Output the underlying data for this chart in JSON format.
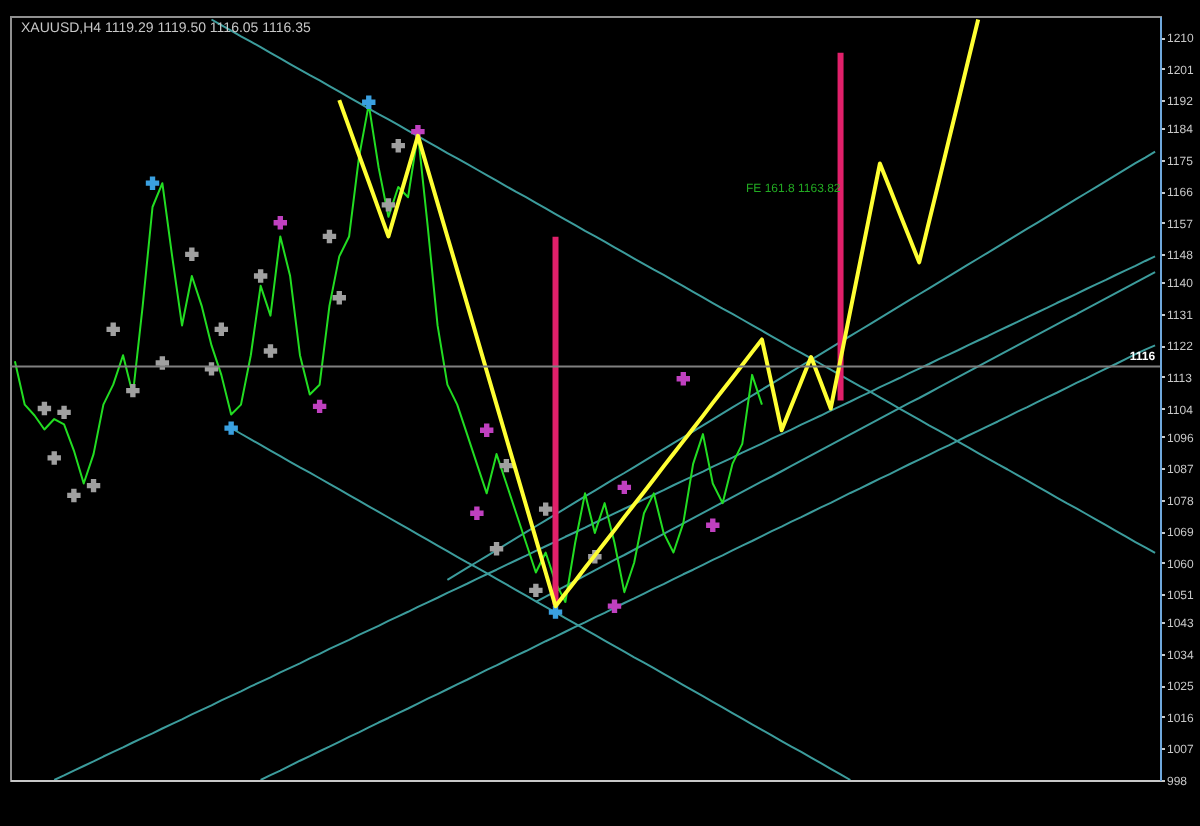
{
  "chart_data": {
    "type": "line",
    "title": "XAUUSD,H4 1119.29 1119.50 1116.05 1116.35",
    "tick_labels": "y",
    "annotations": [
      "FE 161.8 1163.82"
    ],
    "categories": [
      null,
      null,
      null,
      null,
      null,
      null,
      null,
      null,
      null,
      null,
      null,
      null,
      null,
      null,
      null,
      null,
      null,
      null,
      null,
      null,
      null,
      null,
      null,
      null,
      null,
      null,
      null,
      null,
      null,
      null,
      null,
      null,
      null,
      null,
      null,
      null,
      null,
      null,
      null,
      null,
      null,
      null,
      null,
      null,
      null,
      null,
      null,
      null,
      null,
      null,
      null,
      null,
      null,
      null,
      null,
      null,
      null,
      null,
      null,
      null,
      null,
      null,
      null,
      null,
      null,
      null,
      null,
      null,
      null,
      null,
      null,
      null,
      null,
      null,
      null,
      null,
      null,
      null,
      null,
      null,
      null,
      null,
      null,
      null,
      null,
      null,
      null,
      null,
      null,
      null,
      null,
      null,
      null,
      null,
      null,
      null,
      null,
      null,
      null,
      null,
      null,
      null,
      null,
      null,
      null,
      null,
      null,
      null,
      null,
      null,
      null,
      null,
      null,
      null,
      null,
      null,
      null
    ],
    "ylim": [
      998,
      1216
    ],
    "yticks": [
      998,
      1007,
      1016,
      1025,
      1034,
      1043,
      1051,
      1060,
      1069,
      1078,
      1087,
      1096,
      1104,
      1113,
      1122,
      1131,
      1140,
      1148,
      1157,
      1166,
      1175,
      1184,
      1192,
      1201,
      1210
    ],
    "ref_lines": [
      {
        "axis": "y",
        "value": 1116,
        "label": "1116",
        "color": "#808080"
      }
    ],
    "series": [
      {
        "type": "line",
        "color": "#3c9c9c",
        "values": [
          null,
          null,
          null,
          null,
          null,
          null,
          null,
          null,
          null,
          null,
          null,
          null,
          null,
          null,
          null,
          null,
          null,
          null,
          null,
          null,
          1215.0,
          1213.4,
          1211.8,
          1210.2,
          1208.7,
          1207.1,
          1205.5,
          1203.9,
          1202.3,
          1200.7,
          1199.1,
          1197.6,
          1196.0,
          1194.4,
          1192.8,
          1191.2,
          1189.6,
          1188.0,
          1186.5,
          1184.9,
          1183.3,
          1181.7,
          1180.1,
          1178.5,
          1176.9,
          1175.4,
          1173.8,
          1172.2,
          1170.6,
          1169.0,
          1167.4,
          1165.8,
          1164.3,
          1162.7,
          1161.1,
          1159.5,
          1157.9,
          1156.3,
          1154.7,
          1153.2,
          1151.6,
          1150.0,
          1148.4,
          1146.8,
          1145.2,
          1143.6,
          1142.1,
          1140.5,
          1138.9,
          1137.3,
          1135.7,
          1134.1,
          1132.5,
          1131.0,
          1129.4,
          1127.8,
          1126.2,
          1124.6,
          1123.0,
          1121.4,
          1119.9,
          1118.3,
          1116.7,
          1115.1,
          1113.5,
          1111.9,
          1110.3,
          1108.8,
          1107.2,
          1105.6,
          1104.0,
          1102.4,
          1100.8,
          1099.2,
          1097.7,
          1096.1,
          1094.5,
          1092.9,
          1091.3,
          1089.7,
          1088.1,
          1086.6,
          1085.0,
          1083.4,
          1081.8,
          1080.2,
          1078.6,
          1077.0,
          1075.5,
          1073.9,
          1072.3,
          1070.7,
          1069.1,
          1067.5,
          1065.9,
          1064.4,
          1062.8
        ]
      },
      {
        "type": "line",
        "color": "#3c9c9c",
        "values": [
          null,
          null,
          null,
          null,
          null,
          null,
          null,
          null,
          null,
          null,
          null,
          null,
          null,
          null,
          null,
          null,
          null,
          null,
          null,
          null,
          null,
          null,
          1098.4,
          1096.8,
          1095.2,
          1093.6,
          1092.0,
          1090.4,
          1088.8,
          1087.2,
          1085.7,
          1084.1,
          1082.5,
          1080.9,
          1079.3,
          1077.7,
          1076.1,
          1074.5,
          1072.9,
          1071.3,
          1069.7,
          1068.1,
          1066.5,
          1064.9,
          1063.3,
          1061.7,
          1060.1,
          1058.6,
          1057.0,
          1055.4,
          1053.8,
          1052.2,
          1050.6,
          1049.0,
          1047.4,
          1045.8,
          1044.2,
          1042.6,
          1041.0,
          1039.4,
          1037.8,
          1036.2,
          1034.6,
          1033.0,
          1031.5,
          1029.9,
          1028.3,
          1026.7,
          1025.1,
          1023.5,
          1021.9,
          1020.3,
          1018.7,
          1017.1,
          1015.5,
          1013.9,
          1012.3,
          1010.7,
          1009.1,
          1007.5,
          1006.0,
          1004.4,
          1002.8,
          1001.2,
          999.6,
          998.0,
          null,
          null,
          null,
          null,
          null,
          null,
          null,
          null,
          null,
          null,
          null,
          null,
          null,
          null,
          null,
          null,
          null,
          null,
          null,
          null,
          null,
          null,
          null,
          null,
          null,
          null,
          null,
          null,
          null,
          null,
          null
        ]
      },
      {
        "type": "line",
        "color": "#3c9c9c",
        "values": [
          null,
          null,
          null,
          null,
          null,
          null,
          null,
          null,
          null,
          null,
          null,
          null,
          null,
          null,
          null,
          null,
          null,
          null,
          null,
          null,
          null,
          null,
          null,
          null,
          null,
          null,
          null,
          null,
          null,
          null,
          null,
          null,
          null,
          null,
          null,
          null,
          null,
          null,
          null,
          null,
          null,
          null,
          null,
          null,
          1055.1,
          1056.8,
          1058.5,
          1060.2,
          1061.9,
          1063.6,
          1065.3,
          1067.0,
          1068.7,
          1070.4,
          1072.1,
          1073.8,
          1075.5,
          1077.2,
          1078.9,
          1080.6,
          1082.3,
          1084.0,
          1085.6,
          1087.3,
          1089.0,
          1090.7,
          1092.4,
          1094.1,
          1095.8,
          1097.5,
          1099.2,
          1100.9,
          1102.6,
          1104.3,
          1106.0,
          1107.7,
          1109.4,
          1111.1,
          1112.8,
          1114.5,
          1116.2,
          1117.9,
          1119.6,
          1121.3,
          1123.0,
          1124.7,
          1126.4,
          1128.1,
          1129.8,
          1131.5,
          1133.2,
          1134.9,
          1136.6,
          1138.3,
          1140.0,
          1141.7,
          1143.4,
          1145.1,
          1146.8,
          1148.5,
          1150.2,
          1151.9,
          1153.6,
          1155.3,
          1157.0,
          1158.7,
          1160.4,
          1162.1,
          1163.8,
          1165.5,
          1167.2,
          1168.9,
          1170.6,
          1172.3,
          1174.0,
          1175.6,
          1177.3
        ]
      },
      {
        "type": "line",
        "color": "#3c9c9c",
        "values": [
          null,
          null,
          null,
          null,
          998.0,
          999.3,
          1000.7,
          1002.0,
          1003.3,
          1004.7,
          1006.0,
          1007.3,
          1008.7,
          1010.0,
          1011.3,
          1012.7,
          1014.0,
          1015.3,
          1016.7,
          1018.0,
          1019.3,
          1020.7,
          1022.0,
          1023.3,
          1024.7,
          1026.0,
          1027.3,
          1028.7,
          1030.0,
          1031.3,
          1032.7,
          1034.0,
          1035.4,
          1036.7,
          1038.0,
          1039.4,
          1040.7,
          1042.0,
          1043.4,
          1044.7,
          1046.0,
          1047.4,
          1048.7,
          1050.0,
          1051.4,
          1052.7,
          1054.0,
          1055.4,
          1056.7,
          1058.0,
          1059.4,
          1060.7,
          1062.0,
          1063.4,
          1064.7,
          1066.0,
          1067.4,
          1068.7,
          1070.0,
          1071.4,
          1072.7,
          1074.1,
          1075.4,
          1076.7,
          1078.1,
          1079.4,
          1080.7,
          1082.1,
          1083.4,
          1084.7,
          1086.0,
          1087.4,
          1088.7,
          1090.0,
          1091.4,
          1092.7,
          1094.0,
          1095.4,
          1096.7,
          1098.0,
          1099.4,
          1100.7,
          1102.0,
          1103.4,
          1104.7,
          1106.0,
          1107.4,
          1108.7,
          1110.1,
          1111.4,
          1112.7,
          1114.1,
          1115.4,
          1116.7,
          1118.1,
          1119.4,
          1120.7,
          1122.1,
          1123.4,
          1124.7,
          1126.1,
          1127.4,
          1128.7,
          1130.1,
          1131.4,
          1132.7,
          1134.1,
          1135.4,
          1136.7,
          1138.1,
          1139.4,
          1140.7,
          1142.1,
          1143.4,
          1144.7,
          1146.1,
          1147.4
        ]
      },
      {
        "type": "line",
        "color": "#3c9c9c",
        "values": [
          null,
          null,
          null,
          null,
          null,
          null,
          null,
          null,
          null,
          null,
          null,
          null,
          null,
          null,
          null,
          null,
          null,
          null,
          null,
          null,
          null,
          null,
          null,
          null,
          null,
          998.0,
          999.4,
          1000.7,
          1002.1,
          1003.5,
          1004.8,
          1006.2,
          1007.5,
          1008.9,
          1010.3,
          1011.6,
          1013.0,
          1014.4,
          1015.7,
          1017.1,
          1018.4,
          1019.8,
          1021.2,
          1022.5,
          1023.9,
          1025.3,
          1026.6,
          1028.0,
          1029.4,
          1030.7,
          1032.1,
          1033.5,
          1034.8,
          1036.2,
          1037.6,
          1038.9,
          1040.3,
          1041.7,
          1043.0,
          1044.4,
          1045.7,
          1047.1,
          1048.5,
          1049.8,
          1051.2,
          1052.6,
          1053.9,
          1055.3,
          1056.7,
          1058.0,
          1059.4,
          1060.8,
          1062.1,
          1063.5,
          1064.9,
          1066.2,
          1067.6,
          1069.0,
          1070.3,
          1071.7,
          1073.0,
          1074.4,
          1075.8,
          1077.1,
          1078.5,
          1079.9,
          1081.2,
          1082.6,
          1084.0,
          1085.3,
          1086.7,
          1088.1,
          1089.4,
          1090.8,
          1092.2,
          1093.5,
          1094.9,
          1096.3,
          1097.6,
          1099.0,
          1100.3,
          1101.7,
          1103.1,
          1104.4,
          1105.8,
          1107.2,
          1108.5,
          1109.9,
          1111.3,
          1112.6,
          1114.0,
          1115.4,
          1116.7,
          1118.1,
          1119.5,
          1120.8,
          1122.0
        ]
      },
      {
        "type": "line",
        "color": "#3c9c9c",
        "values": [
          null,
          null,
          null,
          null,
          null,
          null,
          null,
          null,
          null,
          null,
          null,
          null,
          null,
          null,
          null,
          null,
          null,
          null,
          null,
          null,
          null,
          null,
          null,
          null,
          null,
          null,
          null,
          null,
          null,
          null,
          null,
          null,
          null,
          null,
          null,
          null,
          null,
          null,
          null,
          null,
          null,
          null,
          null,
          null,
          null,
          null,
          null,
          null,
          null,
          null,
          null,
          null,
          null,
          1048.8,
          1050.3,
          1051.8,
          1053.3,
          1054.8,
          1056.3,
          1057.8,
          1059.3,
          1060.8,
          1062.2,
          1063.7,
          1065.2,
          1066.7,
          1068.2,
          1069.7,
          1071.2,
          1072.7,
          1074.2,
          1075.7,
          1077.2,
          1078.7,
          1080.2,
          1081.7,
          1083.2,
          1084.6,
          1086.1,
          1087.6,
          1089.1,
          1090.6,
          1092.1,
          1093.6,
          1095.1,
          1096.6,
          1098.1,
          1099.6,
          1101.1,
          1102.6,
          1104.1,
          1105.6,
          1107.0,
          1108.5,
          1110.0,
          1111.5,
          1113.0,
          1114.5,
          1116.0,
          1117.5,
          1119.0,
          1120.5,
          1122.0,
          1123.5,
          1125.0,
          1126.5,
          1128.0,
          1129.5,
          1130.9,
          1132.4,
          1133.9,
          1135.4,
          1136.9,
          1138.4,
          1139.9,
          1141.4,
          1142.9
        ]
      },
      {
        "color": "#22dd22",
        "values": [
          1117.5,
          1105.1,
          1102,
          1098,
          1101,
          1099.5,
          1092,
          1082.6,
          1091.0,
          1105.1,
          1110.8,
          1119.2,
          1108.0,
          1133.3,
          1161.5,
          1168.3,
          1147.4,
          1127.7,
          1141.8,
          1133.3,
          1122.0,
          1113.6,
          1102.3,
          1105.1,
          1119.2,
          1139.0,
          1130.5,
          1153.1,
          1141.8,
          1119.2,
          1108.0,
          1110.8,
          1133.3,
          1147.4,
          1153.1,
          1175.6,
          1190.8,
          1172.8,
          1158.7,
          1167.2,
          1164.3,
          1182.4,
          1155.9,
          1127.7,
          1110.8,
          1105.1,
          1096.7,
          1088.2,
          1079.8,
          1091.0,
          1082.6,
          1074.1,
          1065.7,
          1057.2,
          1062.9,
          1054.4,
          1048.8,
          1065.7,
          1079.8,
          1068.5,
          1077.0,
          1065.7,
          1051.6,
          1060.0,
          1074.1,
          1079.8,
          1068.5,
          1062.9,
          1071.3,
          1088.2,
          1096.7,
          1082.6,
          1077.0,
          1088.2,
          1093.9,
          1113.6,
          1105.1,
          null,
          null,
          null,
          null,
          null,
          null,
          null,
          null,
          null,
          null,
          null,
          null,
          null,
          null,
          null,
          null,
          null,
          null,
          null,
          null,
          null,
          null,
          null,
          null,
          null,
          null,
          null,
          null,
          null,
          null,
          null,
          null,
          null,
          null,
          null,
          null,
          null,
          null,
          null,
          null
        ]
      },
      {
        "type": "scatter",
        "marker": "cross",
        "color": "#a0a0a0",
        "values": [
          null,
          null,
          null,
          1104,
          1089.9,
          1102.9,
          1079.2,
          null,
          1082,
          null,
          1126.6,
          null,
          1109.1,
          null,
          null,
          1117,
          null,
          null,
          1148,
          null,
          1115.3,
          1126.6,
          null,
          null,
          null,
          1141.8,
          1120.4,
          null,
          null,
          null,
          null,
          null,
          1153.1,
          1135.6,
          null,
          null,
          null,
          null,
          1162.1,
          1179,
          null,
          null,
          null,
          null,
          null,
          null,
          null,
          null,
          null,
          1064,
          1087.7,
          null,
          null,
          1052.1,
          1075.3,
          null,
          null,
          null,
          null,
          1061.7,
          null,
          null,
          null,
          null,
          null,
          null,
          null,
          null,
          null,
          null,
          null,
          null,
          null,
          null,
          null,
          null,
          null,
          null,
          null,
          null,
          null,
          null,
          null,
          null,
          null,
          null,
          null,
          null,
          null,
          null,
          null,
          null,
          null,
          null,
          null,
          null,
          null,
          null,
          null,
          null,
          null,
          null,
          null,
          null,
          null,
          null,
          null,
          null,
          null,
          null,
          null,
          null,
          null,
          null,
          null,
          null,
          null
        ]
      },
      {
        "type": "scatter",
        "marker": "cross",
        "color": "#c040c0",
        "values": [
          null,
          null,
          null,
          null,
          null,
          null,
          null,
          null,
          null,
          null,
          null,
          null,
          null,
          null,
          null,
          null,
          null,
          null,
          null,
          null,
          null,
          null,
          null,
          null,
          null,
          null,
          null,
          1157,
          null,
          null,
          null,
          1104.6,
          null,
          null,
          null,
          null,
          null,
          null,
          null,
          null,
          null,
          1183,
          null,
          null,
          null,
          null,
          null,
          1074.1,
          1097.8,
          null,
          null,
          null,
          null,
          null,
          null,
          null,
          null,
          null,
          null,
          null,
          null,
          1047.6,
          1081.5,
          null,
          null,
          null,
          null,
          null,
          1112.5,
          null,
          null,
          1070.7,
          null,
          null,
          null,
          null,
          null,
          null,
          null,
          null,
          null,
          null,
          null,
          null,
          null,
          null,
          null,
          null,
          null,
          null,
          null,
          null,
          null,
          null,
          null,
          null,
          null,
          null,
          null,
          null,
          null,
          null,
          null,
          null,
          null,
          null,
          null,
          null,
          null,
          null,
          null,
          null,
          null,
          null,
          null,
          null,
          null
        ]
      },
      {
        "type": "scatter",
        "marker": "cross",
        "color": "#3aa0e0",
        "values": [
          null,
          null,
          null,
          null,
          null,
          null,
          null,
          null,
          null,
          null,
          null,
          null,
          null,
          null,
          1168.3,
          null,
          null,
          null,
          null,
          null,
          null,
          null,
          1098.4,
          null,
          null,
          null,
          null,
          null,
          null,
          null,
          null,
          null,
          null,
          null,
          null,
          null,
          1191.4,
          null,
          null,
          null,
          null,
          null,
          null,
          null,
          null,
          null,
          null,
          null,
          null,
          null,
          null,
          null,
          null,
          null,
          null,
          1045.9,
          null,
          null,
          null,
          null,
          null,
          null,
          null,
          null,
          null,
          null,
          null,
          null,
          null,
          null,
          null,
          null,
          null,
          null,
          null,
          null,
          null,
          null,
          null,
          null,
          null,
          null,
          null,
          null,
          null,
          null,
          null,
          null,
          null,
          null,
          null,
          null,
          null,
          null,
          null,
          null,
          null,
          null,
          null,
          null,
          null,
          null,
          null,
          null,
          null,
          null,
          null,
          null,
          null,
          null,
          null,
          null,
          null,
          null,
          null,
          null,
          null
        ]
      },
      {
        "type": "bar",
        "color": "#e0206a",
        "values": [
          null,
          null,
          null,
          null,
          null,
          null,
          null,
          null,
          null,
          null,
          null,
          null,
          null,
          null,
          null,
          null,
          null,
          null,
          null,
          null,
          null,
          null,
          null,
          null,
          null,
          null,
          null,
          null,
          null,
          null,
          null,
          null,
          null,
          null,
          null,
          null,
          null,
          null,
          null,
          null,
          null,
          null,
          null,
          null,
          null,
          null,
          null,
          null,
          null,
          null,
          null,
          null,
          null,
          null,
          null,
          105,
          null,
          null,
          null,
          null,
          null,
          null,
          null,
          null,
          null,
          null,
          null,
          null,
          null,
          null,
          null,
          null,
          null,
          null,
          null,
          null,
          null,
          null,
          null,
          null,
          null,
          null,
          null,
          null,
          99.2,
          null,
          null,
          null,
          null,
          null,
          null,
          null,
          null,
          null,
          null,
          null,
          null,
          null,
          null,
          null,
          null,
          null,
          null,
          null,
          null,
          null,
          null,
          null,
          null,
          null,
          null,
          null,
          null,
          null,
          null,
          null,
          null
        ],
        "base": [
          null,
          null,
          null,
          null,
          null,
          null,
          null,
          null,
          null,
          null,
          null,
          null,
          null,
          null,
          null,
          null,
          null,
          null,
          null,
          null,
          null,
          null,
          null,
          null,
          null,
          null,
          null,
          null,
          null,
          null,
          null,
          null,
          null,
          null,
          null,
          null,
          null,
          null,
          null,
          null,
          null,
          null,
          null,
          null,
          null,
          null,
          null,
          null,
          null,
          null,
          null,
          null,
          null,
          null,
          null,
          1048,
          null,
          null,
          null,
          null,
          null,
          null,
          null,
          null,
          null,
          null,
          null,
          null,
          null,
          null,
          null,
          null,
          null,
          null,
          null,
          null,
          null,
          null,
          null,
          null,
          null,
          null,
          null,
          null,
          1106.3,
          null,
          null,
          null,
          null,
          null,
          null,
          null,
          null,
          null,
          null,
          null,
          null,
          null,
          null,
          null,
          null,
          null,
          null,
          null,
          null,
          null,
          null,
          null,
          null,
          null,
          null,
          null,
          null,
          null,
          null,
          null,
          null
        ]
      },
      {
        "type": "line",
        "color": "#ffff33",
        "values": [
          null,
          null,
          null,
          null,
          null,
          null,
          null,
          null,
          null,
          null,
          null,
          null,
          null,
          null,
          null,
          null,
          null,
          null,
          null,
          null,
          null,
          null,
          null,
          null,
          null,
          null,
          null,
          null,
          null,
          null,
          null,
          null,
          null,
          1192,
          1184.2,
          1176.4,
          1168.7,
          1160.9,
          1153.1,
          1162.7,
          1172.2,
          1181.8,
          1172.2,
          1162.6,
          1153.0,
          1143.5,
          1133.9,
          1124.3,
          1114.7,
          1105.1,
          1095.5,
          1086.0,
          1076.4,
          1066.8,
          1057.2,
          1047.6,
          1051.2,
          1054.8,
          1058.5,
          1062.1,
          1065.7,
          1069.3,
          1073.0,
          1076.6,
          1080.2,
          1083.8,
          1087.5,
          1091.1,
          1094.7,
          1098.3,
          1101.9,
          1105.6,
          1109.2,
          1112.8,
          1116.4,
          1120.1,
          1123.7,
          1110.8,
          1097.8,
          1104.8,
          1111.7,
          1118.7,
          1111.4,
          1104,
          1118.0,
          1132.0,
          1145.9,
          1159.9,
          1173.9,
          1166.9,
          1159.8,
          1152.8,
          1145.7,
          1157.3,
          1168.8,
          1180.4,
          1191.9,
          1203.5,
          1215,
          null,
          null,
          null,
          null,
          null,
          null,
          null,
          null,
          null,
          null,
          null,
          null,
          null,
          null,
          null,
          null,
          null,
          null
        ]
      }
    ]
  }
}
